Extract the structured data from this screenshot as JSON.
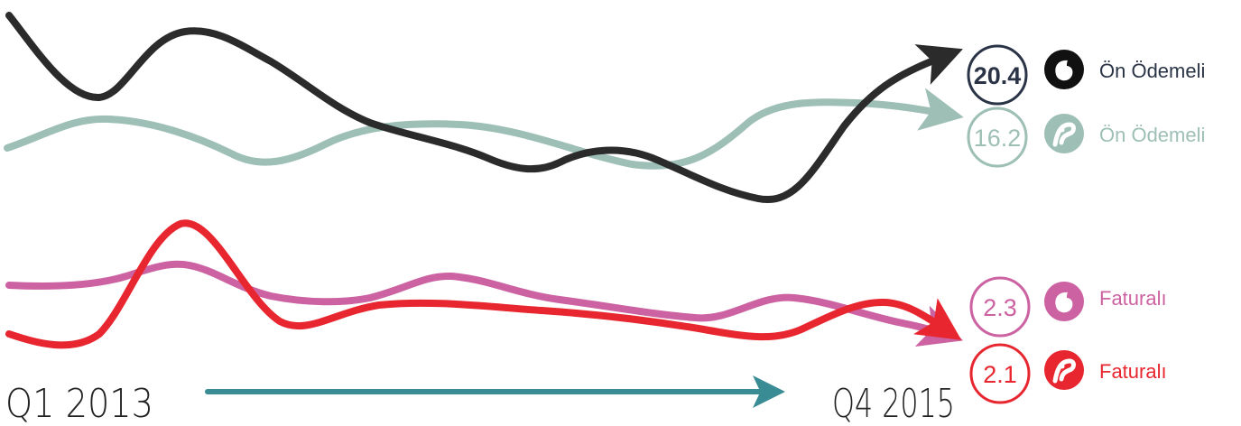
{
  "header_text": "",
  "chart_data": {
    "type": "line",
    "title": "",
    "x_axis": {
      "start_label": "Q1 2013",
      "end_label": "Q4 2015"
    },
    "series": [
      {
        "name": "Ön Ödemeli",
        "brand_icon": "vodafone-icon",
        "end_value": "20.4",
        "color": "#2b2b2b",
        "circle_text_color": "#2a3446",
        "circle_stroke": "#2a3446",
        "label_color": "#2a3446",
        "group": "top"
      },
      {
        "name": "Ön Ödemeli",
        "brand_icon": "turkcell-icon",
        "end_value": "16.2",
        "color": "#9dbfb6",
        "circle_text_color": "#9dbfb6",
        "circle_stroke": "#9dbfb6",
        "label_color": "#9dbfb6",
        "group": "top"
      },
      {
        "name": "Faturalı",
        "brand_icon": "vodafone-icon",
        "end_value": "2.3",
        "color": "#cc62a1",
        "circle_text_color": "#cc62a1",
        "circle_stroke": "#cc62a1",
        "label_color": "#cc62a1",
        "group": "bottom"
      },
      {
        "name": "Faturalı",
        "brand_icon": "turkcell-icon",
        "end_value": "2.1",
        "color": "#e8262f",
        "circle_text_color": "#e8262f",
        "circle_stroke": "#e8262f",
        "label_color": "#e8262f",
        "group": "bottom"
      }
    ],
    "arrow_color": "#3a8c94"
  }
}
